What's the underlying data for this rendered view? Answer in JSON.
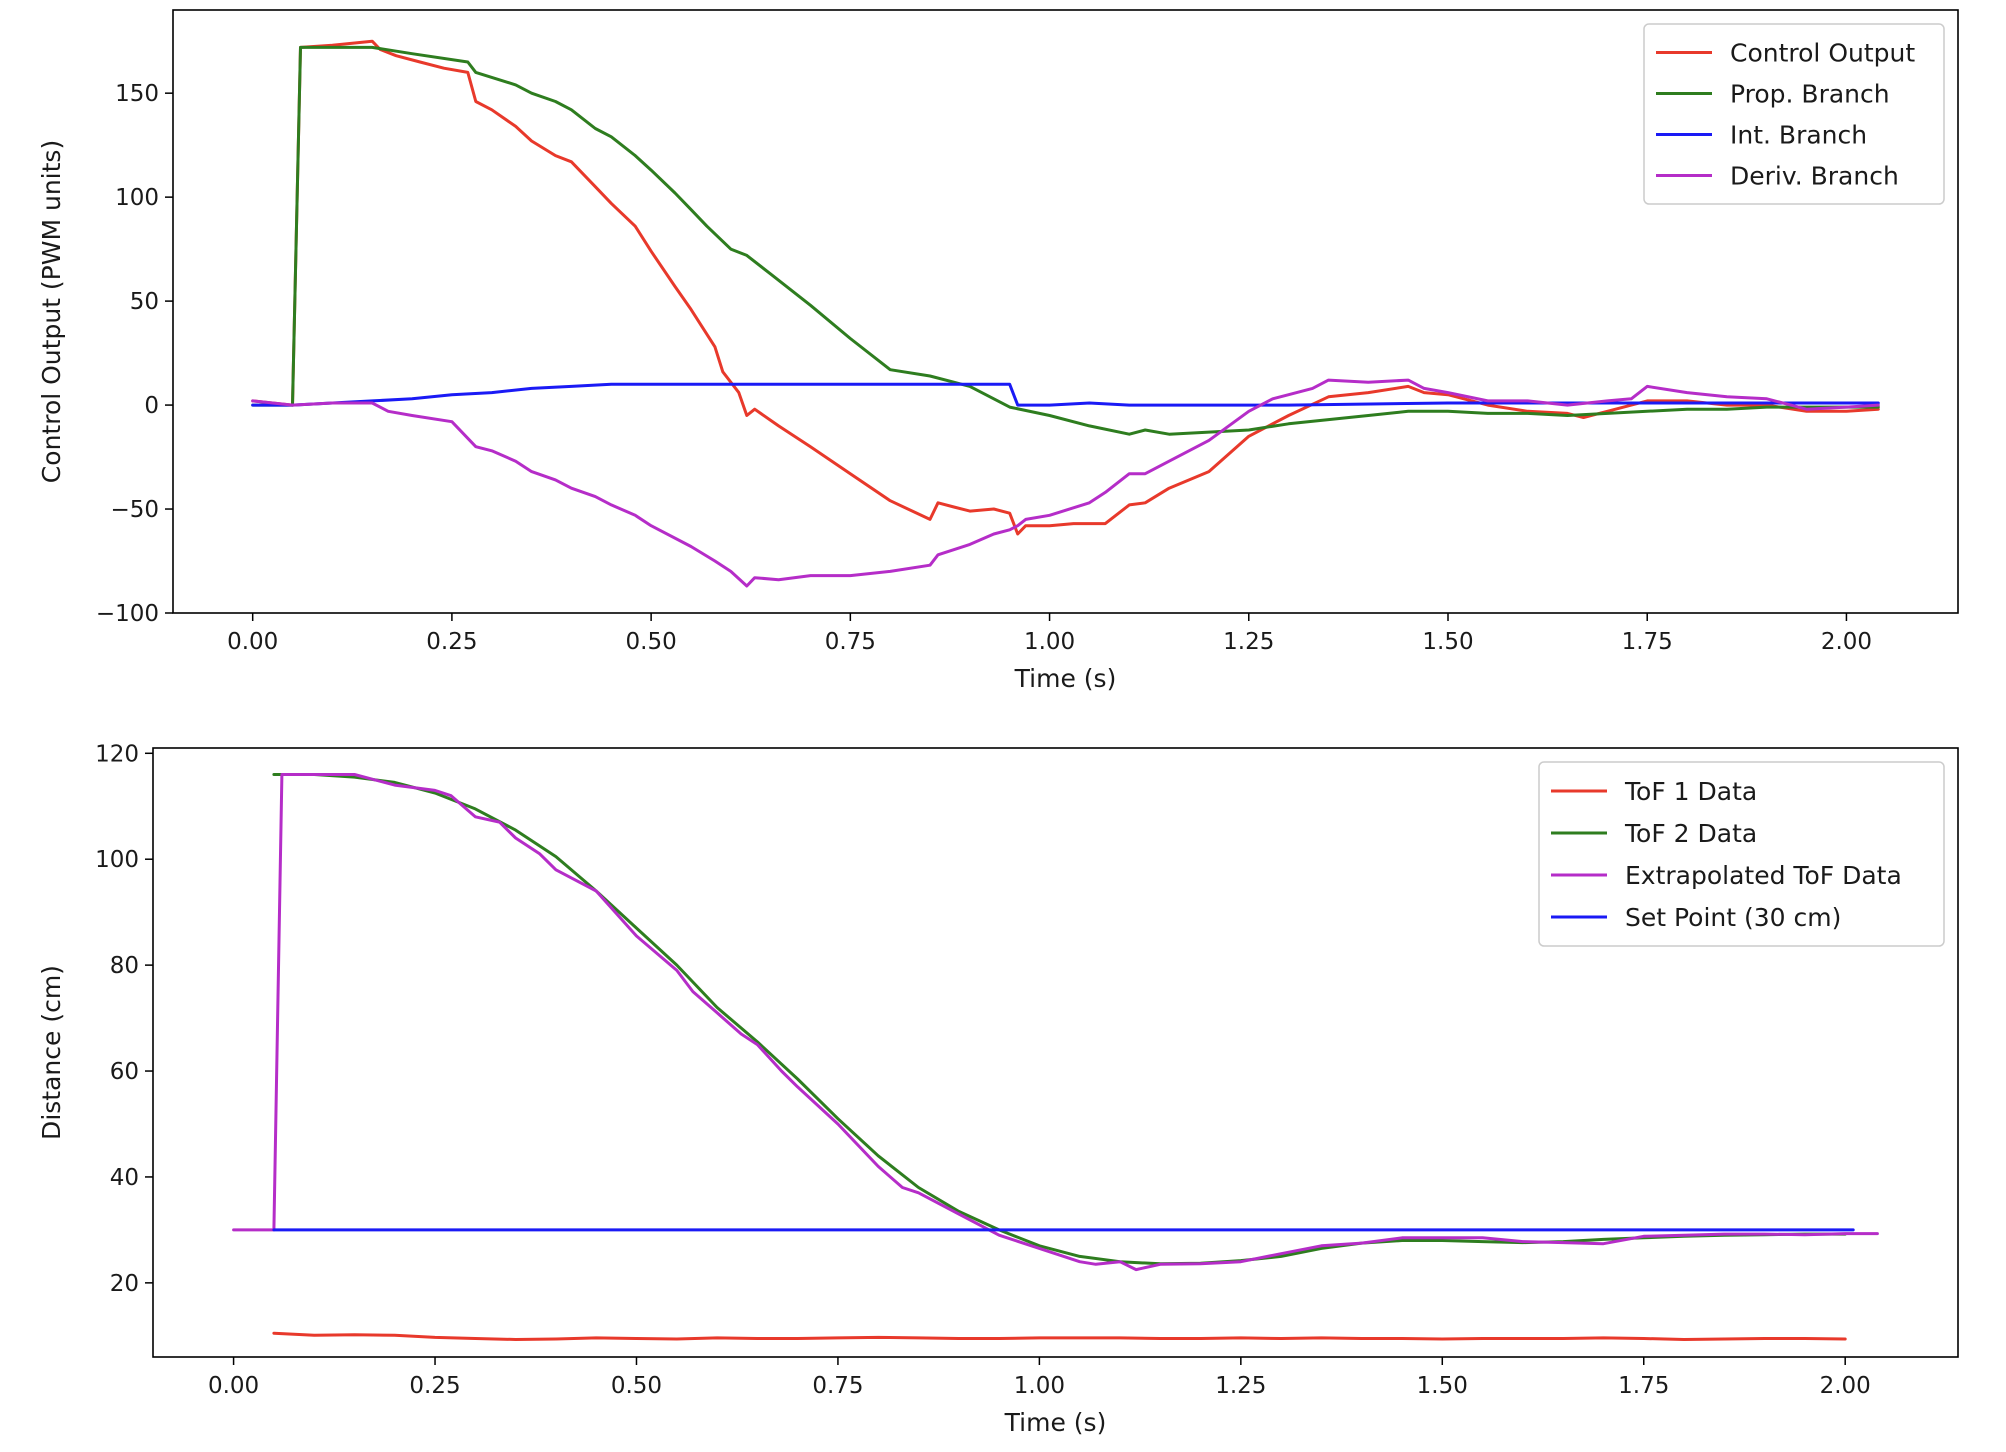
{
  "chart_data": [
    {
      "type": "line",
      "title": "",
      "xlabel": "Time (s)",
      "ylabel": "Control Output (PWM units)",
      "xlim": [
        -0.1,
        2.14
      ],
      "ylim": [
        -100,
        190
      ],
      "xticks": [
        0.0,
        0.25,
        0.5,
        0.75,
        1.0,
        1.25,
        1.5,
        1.75,
        2.0
      ],
      "xtick_labels": [
        "0.00",
        "0.25",
        "0.50",
        "0.75",
        "1.00",
        "1.25",
        "1.50",
        "1.75",
        "2.00"
      ],
      "yticks": [
        -100,
        -50,
        0,
        50,
        100,
        150
      ],
      "ytick_labels": [
        "−100",
        "−50",
        "0",
        "50",
        "100",
        "150"
      ],
      "grid": false,
      "legend_position": "top-right",
      "series": [
        {
          "name": "Control Output",
          "color": "#e8392b",
          "x": [
            0.0,
            0.05,
            0.06,
            0.1,
            0.15,
            0.16,
            0.18,
            0.21,
            0.24,
            0.27,
            0.28,
            0.3,
            0.33,
            0.35,
            0.38,
            0.4,
            0.43,
            0.45,
            0.48,
            0.5,
            0.53,
            0.55,
            0.58,
            0.59,
            0.61,
            0.62,
            0.63,
            0.66,
            0.7,
            0.75,
            0.8,
            0.85,
            0.86,
            0.88,
            0.9,
            0.93,
            0.95,
            0.96,
            0.97,
            1.0,
            1.03,
            1.07,
            1.1,
            1.12,
            1.15,
            1.2,
            1.25,
            1.3,
            1.35,
            1.4,
            1.45,
            1.47,
            1.5,
            1.55,
            1.6,
            1.65,
            1.67,
            1.7,
            1.75,
            1.8,
            1.85,
            1.9,
            1.95,
            2.0,
            2.04
          ],
          "y": [
            2,
            0,
            172,
            173,
            175,
            171,
            168,
            165,
            162,
            160,
            146,
            142,
            134,
            127,
            120,
            117,
            105,
            97,
            86,
            74,
            57,
            46,
            28,
            16,
            6,
            -5,
            -2,
            -10,
            -20,
            -33,
            -46,
            -55,
            -47,
            -49,
            -51,
            -50,
            -52,
            -62,
            -58,
            -58,
            -57,
            -57,
            -48,
            -47,
            -40,
            -32,
            -15,
            -5,
            4,
            6,
            9,
            6,
            5,
            0,
            -3,
            -4,
            -6,
            -3,
            2,
            2,
            0,
            0,
            -3,
            -3,
            -2
          ]
        },
        {
          "name": "Prop. Branch",
          "color": "#2e7d1f",
          "x": [
            0.0,
            0.05,
            0.06,
            0.1,
            0.15,
            0.2,
            0.27,
            0.28,
            0.33,
            0.35,
            0.38,
            0.4,
            0.43,
            0.45,
            0.48,
            0.5,
            0.53,
            0.55,
            0.57,
            0.6,
            0.62,
            0.65,
            0.7,
            0.75,
            0.8,
            0.85,
            0.9,
            0.95,
            1.0,
            1.05,
            1.1,
            1.12,
            1.15,
            1.2,
            1.25,
            1.3,
            1.35,
            1.4,
            1.45,
            1.5,
            1.55,
            1.6,
            1.65,
            1.7,
            1.75,
            1.8,
            1.85,
            1.9,
            1.95,
            2.0,
            2.04
          ],
          "y": [
            0,
            0,
            172,
            172,
            172,
            169,
            165,
            160,
            154,
            150,
            146,
            142,
            133,
            129,
            120,
            113,
            102,
            94,
            86,
            75,
            72,
            63,
            48,
            32,
            17,
            14,
            9,
            -1,
            -5,
            -10,
            -14,
            -12,
            -14,
            -13,
            -12,
            -9,
            -7,
            -5,
            -3,
            -3,
            -4,
            -4,
            -5,
            -4,
            -3,
            -2,
            -2,
            -1,
            -1,
            -1,
            -1
          ]
        },
        {
          "name": "Int. Branch",
          "color": "#1a1af5",
          "x": [
            0.0,
            0.05,
            0.1,
            0.15,
            0.2,
            0.25,
            0.3,
            0.35,
            0.4,
            0.45,
            0.5,
            0.6,
            0.7,
            0.8,
            0.9,
            0.95,
            0.96,
            1.0,
            1.05,
            1.1,
            1.3,
            1.5,
            1.7,
            1.9,
            2.04
          ],
          "y": [
            0,
            0,
            1,
            2,
            3,
            5,
            6,
            8,
            9,
            10,
            10,
            10,
            10,
            10,
            10,
            10,
            0,
            0,
            1,
            0,
            0,
            1,
            1,
            1,
            1
          ]
        },
        {
          "name": "Deriv. Branch",
          "color": "#b52dc8",
          "x": [
            0.0,
            0.05,
            0.1,
            0.15,
            0.17,
            0.2,
            0.25,
            0.28,
            0.3,
            0.33,
            0.35,
            0.38,
            0.4,
            0.43,
            0.45,
            0.48,
            0.5,
            0.55,
            0.58,
            0.6,
            0.62,
            0.63,
            0.66,
            0.7,
            0.75,
            0.8,
            0.85,
            0.86,
            0.9,
            0.93,
            0.95,
            0.96,
            0.97,
            1.0,
            1.05,
            1.07,
            1.1,
            1.12,
            1.15,
            1.2,
            1.25,
            1.28,
            1.3,
            1.33,
            1.35,
            1.4,
            1.45,
            1.47,
            1.5,
            1.55,
            1.6,
            1.65,
            1.7,
            1.73,
            1.75,
            1.8,
            1.85,
            1.9,
            1.95,
            2.0,
            2.04
          ],
          "y": [
            2,
            0,
            1,
            1,
            -3,
            -5,
            -8,
            -20,
            -22,
            -27,
            -32,
            -36,
            -40,
            -44,
            -48,
            -53,
            -58,
            -68,
            -75,
            -80,
            -87,
            -83,
            -84,
            -82,
            -82,
            -80,
            -77,
            -72,
            -67,
            -62,
            -60,
            -58,
            -55,
            -53,
            -47,
            -42,
            -33,
            -33,
            -27,
            -17,
            -3,
            3,
            5,
            8,
            12,
            11,
            12,
            8,
            6,
            2,
            2,
            0,
            2,
            3,
            9,
            6,
            4,
            3,
            -2,
            -1,
            0
          ]
        }
      ]
    },
    {
      "type": "line",
      "title": "",
      "xlabel": "Time (s)",
      "ylabel": "Distance (cm)",
      "xlim": [
        -0.1,
        2.14
      ],
      "ylim": [
        6,
        121
      ],
      "xticks": [
        0.0,
        0.25,
        0.5,
        0.75,
        1.0,
        1.25,
        1.5,
        1.75,
        2.0
      ],
      "xtick_labels": [
        "0.00",
        "0.25",
        "0.50",
        "0.75",
        "1.00",
        "1.25",
        "1.50",
        "1.75",
        "2.00"
      ],
      "yticks": [
        20,
        40,
        60,
        80,
        100,
        120
      ],
      "ytick_labels": [
        "20",
        "40",
        "60",
        "80",
        "100",
        "120"
      ],
      "grid": false,
      "legend_position": "top-right",
      "series": [
        {
          "name": "ToF 1 Data",
          "color": "#e8392b",
          "x": [
            0.05,
            0.1,
            0.15,
            0.2,
            0.25,
            0.3,
            0.35,
            0.4,
            0.45,
            0.5,
            0.55,
            0.6,
            0.65,
            0.7,
            0.75,
            0.8,
            0.85,
            0.9,
            0.95,
            1.0,
            1.05,
            1.1,
            1.15,
            1.2,
            1.25,
            1.3,
            1.35,
            1.4,
            1.45,
            1.5,
            1.55,
            1.6,
            1.65,
            1.7,
            1.75,
            1.8,
            1.85,
            1.9,
            1.95,
            2.0
          ],
          "y": [
            10.5,
            10.1,
            10.2,
            10.1,
            9.7,
            9.5,
            9.3,
            9.4,
            9.6,
            9.5,
            9.4,
            9.6,
            9.5,
            9.5,
            9.6,
            9.7,
            9.6,
            9.5,
            9.5,
            9.6,
            9.6,
            9.6,
            9.5,
            9.5,
            9.6,
            9.5,
            9.6,
            9.5,
            9.5,
            9.4,
            9.5,
            9.5,
            9.5,
            9.6,
            9.5,
            9.3,
            9.4,
            9.5,
            9.5,
            9.4
          ]
        },
        {
          "name": "ToF 2 Data",
          "color": "#2e7d1f",
          "x": [
            0.05,
            0.1,
            0.15,
            0.2,
            0.25,
            0.3,
            0.35,
            0.4,
            0.45,
            0.5,
            0.55,
            0.6,
            0.65,
            0.7,
            0.75,
            0.8,
            0.85,
            0.9,
            0.95,
            1.0,
            1.05,
            1.1,
            1.15,
            1.2,
            1.25,
            1.3,
            1.35,
            1.4,
            1.45,
            1.5,
            1.55,
            1.6,
            1.65,
            1.7,
            1.75,
            1.8,
            1.85,
            1.9,
            1.95,
            2.0
          ],
          "y": [
            116,
            116,
            115.5,
            114.5,
            112.5,
            109.5,
            105.5,
            100.5,
            94,
            87,
            80,
            72,
            65.5,
            58.5,
            51,
            44,
            38,
            33.5,
            30,
            27,
            25,
            24,
            23.6,
            23.7,
            24.2,
            25,
            26.5,
            27.5,
            28,
            28,
            27.8,
            27.6,
            27.8,
            28.2,
            28.5,
            28.8,
            29,
            29.1,
            29.2,
            29.2
          ]
        },
        {
          "name": "Extrapolated ToF Data",
          "color": "#b52dc8",
          "x": [
            0.0,
            0.05,
            0.06,
            0.1,
            0.15,
            0.2,
            0.25,
            0.27,
            0.3,
            0.33,
            0.35,
            0.38,
            0.4,
            0.45,
            0.5,
            0.55,
            0.57,
            0.6,
            0.63,
            0.65,
            0.68,
            0.7,
            0.75,
            0.8,
            0.83,
            0.85,
            0.9,
            0.95,
            1.0,
            1.05,
            1.07,
            1.1,
            1.12,
            1.15,
            1.2,
            1.25,
            1.3,
            1.35,
            1.4,
            1.45,
            1.5,
            1.55,
            1.6,
            1.65,
            1.7,
            1.75,
            1.8,
            1.85,
            1.9,
            1.95,
            2.0,
            2.04
          ],
          "y": [
            30,
            30,
            116,
            116,
            116,
            114,
            113,
            112,
            108,
            107,
            104,
            101,
            98,
            94,
            85.5,
            79,
            75,
            71,
            67,
            65,
            60,
            57,
            50,
            42,
            38,
            37,
            33,
            29,
            26.5,
            24,
            23.5,
            24,
            22.5,
            23.5,
            23.6,
            24,
            25.5,
            27,
            27.5,
            28.5,
            28.5,
            28.5,
            27.8,
            27.6,
            27.4,
            28.8,
            29,
            29.2,
            29.2,
            29.1,
            29.3,
            29.3
          ]
        },
        {
          "name": "Set Point (30 cm)",
          "color": "#1a1af5",
          "x": [
            0.05,
            2.01
          ],
          "y": [
            30,
            30
          ]
        }
      ]
    }
  ]
}
